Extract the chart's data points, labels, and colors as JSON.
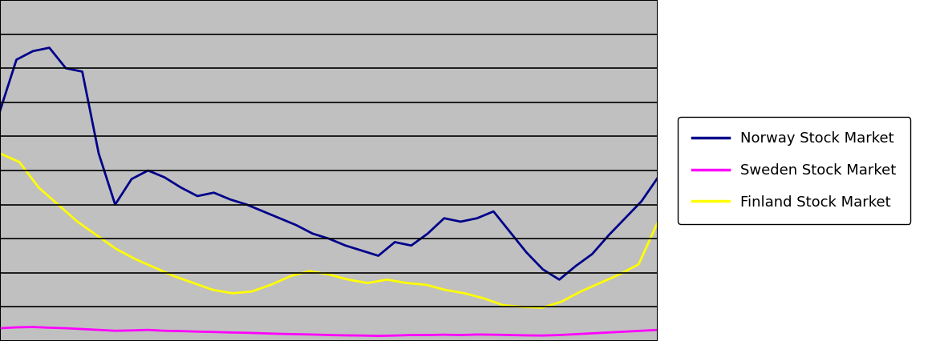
{
  "background_color": "#C0C0C0",
  "norway_color": "#00008B",
  "sweden_color": "#FF00FF",
  "finland_color": "#FFFF00",
  "line_width": 2.0,
  "legend_labels": [
    "Norway Stock Market",
    "Sweden Stock Market",
    "Finland Stock Market"
  ],
  "ylim": [
    0,
    2000
  ],
  "norway_data": [
    1350,
    1650,
    1700,
    1720,
    1600,
    1580,
    1100,
    800,
    950,
    1000,
    960,
    900,
    850,
    870,
    830,
    800,
    760,
    720,
    680,
    630,
    600,
    560,
    530,
    500,
    580,
    560,
    630,
    720,
    700,
    720,
    760,
    640,
    520,
    420,
    360,
    440,
    510,
    620,
    720,
    820,
    960
  ],
  "sweden_data": [
    75,
    80,
    82,
    78,
    75,
    70,
    65,
    60,
    62,
    65,
    60,
    58,
    55,
    53,
    50,
    48,
    45,
    42,
    40,
    38,
    35,
    33,
    32,
    30,
    32,
    35,
    35,
    37,
    35,
    38,
    37,
    35,
    33,
    32,
    35,
    40,
    45,
    50,
    55,
    60,
    65
  ],
  "finland_data": [
    1100,
    1050,
    900,
    800,
    700,
    620,
    540,
    480,
    430,
    380,
    340,
    300,
    280,
    290,
    330,
    380,
    410,
    390,
    360,
    340,
    360,
    340,
    330,
    300,
    280,
    250,
    210,
    200,
    195,
    230,
    290,
    340,
    390,
    450,
    700
  ],
  "n_hgrid_lines": 10,
  "legend_fontsize": 13,
  "legend_handlelength": 2.5
}
